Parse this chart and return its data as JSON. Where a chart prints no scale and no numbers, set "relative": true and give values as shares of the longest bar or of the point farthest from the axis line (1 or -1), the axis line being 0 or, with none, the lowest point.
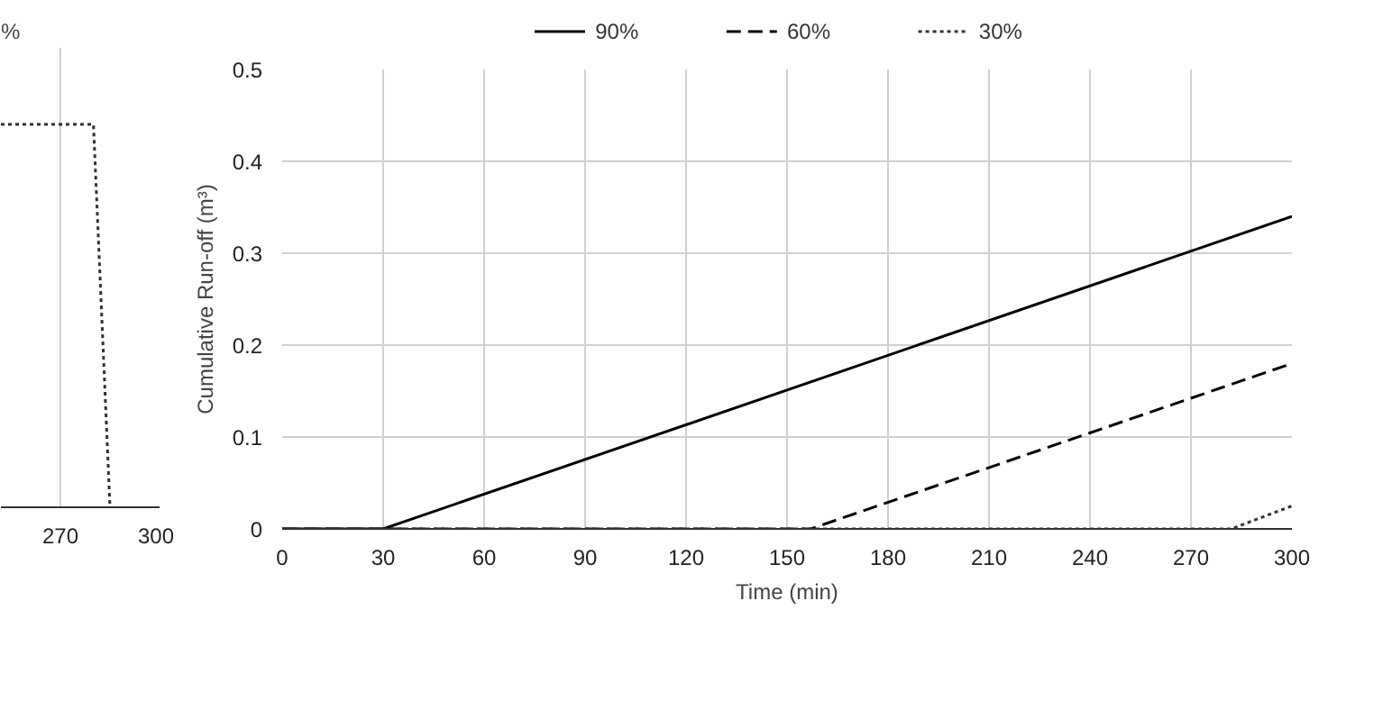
{
  "chart_data": [
    {
      "type": "line",
      "relative": true,
      "x": [
        252,
        280,
        285
      ],
      "xlim": [
        252,
        300
      ],
      "xticks": [
        270,
        300
      ],
      "grid": "x",
      "annotations": [
        "%"
      ],
      "series": [
        {
          "color": "#303030",
          "line_style": "dotted",
          "values": [
            1,
            1,
            0
          ]
        }
      ]
    },
    {
      "type": "line",
      "xlabel": "Time (min)",
      "ylabel": "Cumulative Run-off (m³)",
      "xlim": [
        0,
        300
      ],
      "ylim": [
        0,
        0.5
      ],
      "xticks": [
        0,
        30,
        60,
        90,
        120,
        150,
        180,
        210,
        240,
        270,
        300
      ],
      "yticks": [
        0,
        0.1,
        0.2,
        0.3,
        0.4,
        0.5
      ],
      "grid": true,
      "legend": "top",
      "series": [
        {
          "name": "90%",
          "color": "#000000",
          "line_style": "solid",
          "x": [
            0,
            30,
            300
          ],
          "values": [
            0,
            0,
            0.34
          ]
        },
        {
          "name": "60%",
          "color": "#000000",
          "line_style": "dashed",
          "x": [
            0,
            157,
            300
          ],
          "values": [
            0,
            0,
            0.18
          ]
        },
        {
          "name": "30%",
          "color": "#333333",
          "line_style": "dotted",
          "x": [
            0,
            282,
            300
          ],
          "values": [
            0,
            0,
            0.025
          ]
        }
      ]
    }
  ]
}
